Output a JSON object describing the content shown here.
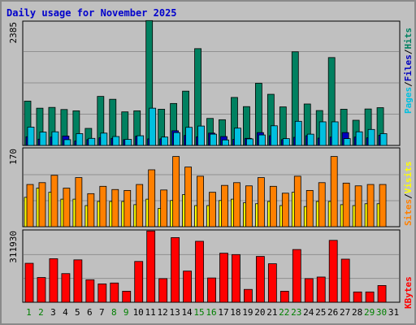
{
  "title": "Daily usage for November 2025",
  "colors": {
    "hits": "#008060",
    "files": "#0000c0",
    "pages": "#00c0e0",
    "visits": "#ffff00",
    "sites": "#ff8000",
    "kbytes": "#ff0000",
    "weekend_day": "#008000",
    "weekday_day": "#000000"
  },
  "chart_data": [
    {
      "type": "bar",
      "title": "Hits / Files / Pages",
      "legend": [
        "Pages",
        "/",
        "Files",
        "/",
        "Hits"
      ],
      "ymax_label": "2385",
      "ylim": [
        0,
        2385
      ],
      "categories": [
        "1",
        "2",
        "3",
        "4",
        "5",
        "6",
        "7",
        "8",
        "9",
        "10",
        "11",
        "12",
        "13",
        "14",
        "15",
        "16",
        "17",
        "18",
        "19",
        "20",
        "21",
        "22",
        "23",
        "24",
        "25",
        "26",
        "27",
        "28",
        "29",
        "30",
        "31"
      ],
      "series": [
        {
          "name": "Hits",
          "values": [
            845,
            710,
            725,
            685,
            660,
            325,
            935,
            880,
            640,
            660,
            2380,
            690,
            800,
            1035,
            1845,
            515,
            490,
            915,
            740,
            1185,
            975,
            735,
            1785,
            790,
            665,
            1675,
            690,
            480,
            695,
            720,
            0
          ]
        },
        {
          "name": "Files",
          "values": [
            165,
            120,
            160,
            180,
            85,
            110,
            145,
            135,
            110,
            175,
            125,
            125,
            280,
            190,
            165,
            235,
            170,
            115,
            135,
            245,
            185,
            110,
            155,
            185,
            140,
            160,
            245,
            160,
            145,
            195,
            0
          ]
        },
        {
          "name": "Pages",
          "values": [
            350,
            255,
            260,
            110,
            225,
            135,
            235,
            170,
            115,
            185,
            710,
            160,
            245,
            345,
            370,
            215,
            105,
            330,
            125,
            200,
            375,
            130,
            460,
            215,
            450,
            450,
            130,
            260,
            305,
            225,
            0
          ]
        }
      ]
    },
    {
      "type": "bar",
      "title": "Visits / Sites",
      "legend": [
        "Sites",
        "/",
        "Visits"
      ],
      "ymax_label": "170",
      "ylim": [
        0,
        170
      ],
      "categories": [
        "1",
        "2",
        "3",
        "4",
        "5",
        "6",
        "7",
        "8",
        "9",
        "10",
        "11",
        "12",
        "13",
        "14",
        "15",
        "16",
        "17",
        "18",
        "19",
        "20",
        "21",
        "22",
        "23",
        "24",
        "25",
        "26",
        "27",
        "28",
        "29",
        "30",
        "31"
      ],
      "series": [
        {
          "name": "Visits",
          "values": [
            64,
            84,
            75,
            60,
            60,
            46,
            55,
            55,
            55,
            48,
            60,
            40,
            57,
            70,
            46,
            46,
            57,
            60,
            52,
            50,
            55,
            46,
            75,
            44,
            55,
            55,
            48,
            46,
            50,
            50,
            0
          ]
        },
        {
          "name": "Sites",
          "values": [
            92,
            96,
            112,
            84,
            107,
            72,
            88,
            81,
            79,
            92,
            124,
            80,
            153,
            130,
            110,
            75,
            90,
            96,
            89,
            107,
            88,
            73,
            110,
            79,
            96,
            153,
            95,
            89,
            92,
            92,
            0
          ]
        }
      ]
    },
    {
      "type": "bar",
      "title": "KBytes",
      "legend": [
        "KBytes"
      ],
      "ymax_label": "311930",
      "ylim": [
        0,
        311930
      ],
      "categories": [
        "1",
        "2",
        "3",
        "4",
        "5",
        "6",
        "7",
        "8",
        "9",
        "10",
        "11",
        "12",
        "13",
        "14",
        "15",
        "16",
        "17",
        "18",
        "19",
        "20",
        "21",
        "22",
        "23",
        "24",
        "25",
        "26",
        "27",
        "28",
        "29",
        "30",
        "31"
      ],
      "series": [
        {
          "name": "KBytes",
          "values": [
            170000,
            108000,
            190000,
            125000,
            185000,
            98000,
            80000,
            84000,
            48000,
            178000,
            311000,
            103000,
            282000,
            136000,
            266000,
            106000,
            214000,
            208000,
            56000,
            200000,
            168000,
            48000,
            230000,
            103000,
            110000,
            270000,
            188000,
            45000,
            45000,
            73000,
            0
          ]
        }
      ]
    }
  ]
}
